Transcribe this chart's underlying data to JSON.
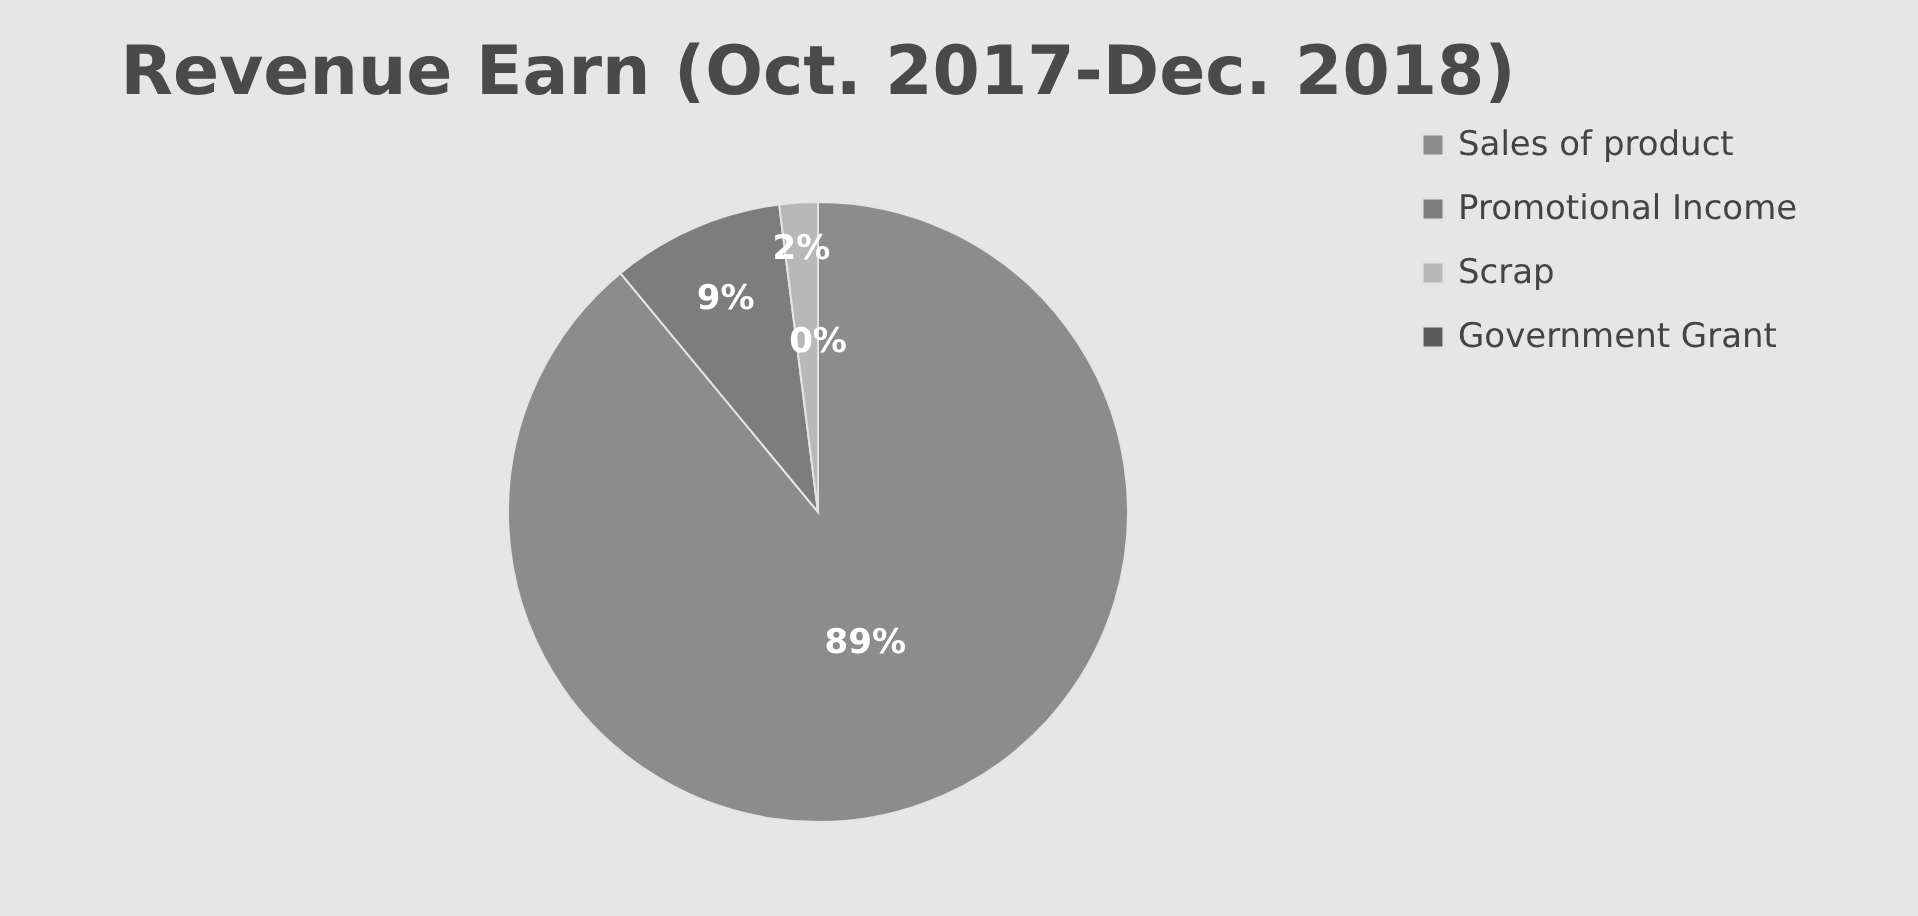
{
  "chart_data": {
    "type": "pie",
    "title": "Revenue Earn (Oct. 2017-Dec. 2018)",
    "categories": [
      "Sales of product",
      "Promotional Income",
      "Scrap",
      "Government Grant"
    ],
    "values": [
      89,
      9,
      2,
      0
    ],
    "colors": [
      "#8c8c8c",
      "#7d7d7d",
      "#b8b8b8",
      "#5a5a5a"
    ],
    "value_labels": [
      "89%",
      "9%",
      "2%",
      "0%"
    ],
    "legend": "right"
  }
}
